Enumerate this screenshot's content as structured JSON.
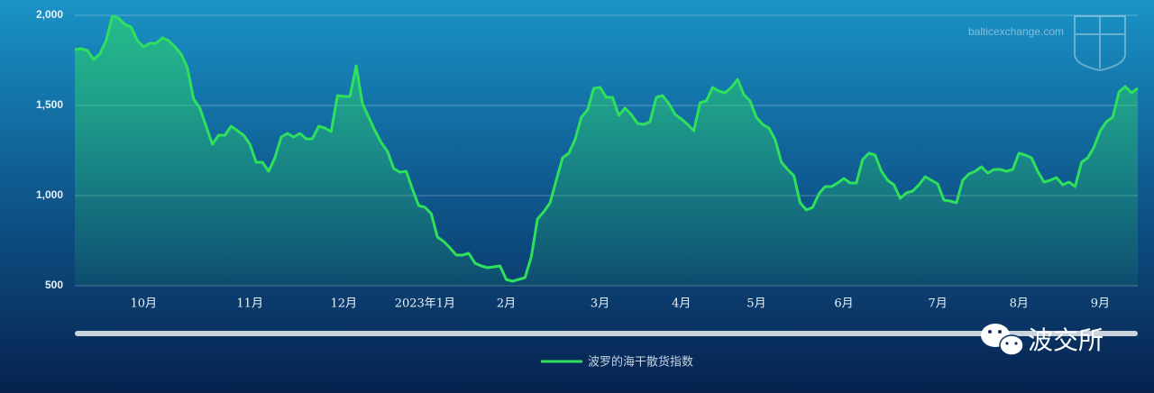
{
  "chart_data": {
    "type": "line",
    "watermark": "balticexchange.com",
    "brand": "波交所",
    "categories": [
      null,
      null,
      null,
      null,
      null,
      null,
      null,
      null,
      null,
      null,
      null,
      "10月",
      null,
      null,
      null,
      null,
      null,
      null,
      null,
      null,
      null,
      null,
      null,
      null,
      null,
      null,
      null,
      null,
      "11月",
      null,
      null,
      null,
      null,
      null,
      null,
      null,
      null,
      null,
      null,
      null,
      null,
      null,
      null,
      "12月",
      null,
      null,
      null,
      null,
      null,
      null,
      null,
      null,
      null,
      null,
      null,
      null,
      "2023年1月",
      null,
      null,
      null,
      null,
      null,
      null,
      null,
      null,
      null,
      null,
      null,
      null,
      "2月",
      null,
      null,
      null,
      null,
      null,
      null,
      null,
      null,
      null,
      null,
      null,
      null,
      null,
      null,
      "3月",
      null,
      null,
      null,
      null,
      null,
      null,
      null,
      null,
      null,
      null,
      null,
      null,
      "4月",
      null,
      null,
      null,
      null,
      null,
      null,
      null,
      null,
      null,
      null,
      null,
      "5月",
      null,
      null,
      null,
      null,
      null,
      null,
      null,
      null,
      null,
      null,
      null,
      null,
      null,
      "6月",
      null,
      null,
      null,
      null,
      null,
      null,
      null,
      null,
      null,
      null,
      null,
      null,
      null,
      null,
      "7月",
      null,
      null,
      null,
      null,
      null,
      null,
      null,
      null,
      null,
      null,
      null,
      null,
      "8月",
      null,
      null,
      null,
      null,
      null,
      null,
      null,
      null,
      null,
      null,
      null,
      null,
      "9月",
      null,
      null,
      null,
      null,
      null,
      null
    ],
    "series": [
      {
        "name": "波罗的海干散货指数",
        "color": "#2fe05c",
        "values": [
          1810,
          1815,
          1805,
          1755,
          1785,
          1860,
          1995,
          1985,
          1950,
          1935,
          1860,
          1825,
          1845,
          1845,
          1875,
          1860,
          1825,
          1785,
          1710,
          1535,
          1485,
          1385,
          1285,
          1335,
          1335,
          1385,
          1360,
          1335,
          1285,
          1185,
          1185,
          1135,
          1210,
          1325,
          1345,
          1325,
          1345,
          1315,
          1315,
          1385,
          1375,
          1355,
          1555,
          1550,
          1550,
          1720,
          1510,
          1435,
          1360,
          1295,
          1245,
          1150,
          1130,
          1135,
          1035,
          945,
          935,
          900,
          770,
          745,
          710,
          670,
          670,
          680,
          625,
          610,
          600,
          605,
          610,
          535,
          525,
          535,
          545,
          660,
          870,
          910,
          960,
          1085,
          1210,
          1235,
          1310,
          1435,
          1475,
          1595,
          1600,
          1545,
          1545,
          1445,
          1485,
          1450,
          1400,
          1395,
          1410,
          1545,
          1555,
          1510,
          1450,
          1425,
          1395,
          1360,
          1515,
          1525,
          1600,
          1580,
          1570,
          1600,
          1645,
          1560,
          1525,
          1435,
          1395,
          1375,
          1310,
          1185,
          1145,
          1110,
          960,
          920,
          935,
          1010,
          1050,
          1050,
          1070,
          1095,
          1070,
          1070,
          1200,
          1235,
          1225,
          1135,
          1085,
          1060,
          985,
          1015,
          1025,
          1060,
          1105,
          1085,
          1065,
          975,
          970,
          960,
          1085,
          1120,
          1135,
          1160,
          1125,
          1145,
          1145,
          1135,
          1145,
          1235,
          1225,
          1210,
          1135,
          1075,
          1085,
          1100,
          1060,
          1075,
          1050,
          1185,
          1210,
          1270,
          1360,
          1410,
          1435,
          1575,
          1605,
          1570,
          1595
        ]
      }
    ],
    "ylim": [
      500,
      2000
    ],
    "yticks": [
      500,
      {
        "value": 1000,
        "label": "1,000"
      },
      {
        "value": 1500,
        "label": "1,500"
      },
      {
        "value": 2000,
        "label": "2,000"
      }
    ],
    "grid": true,
    "legend": "bottom"
  }
}
